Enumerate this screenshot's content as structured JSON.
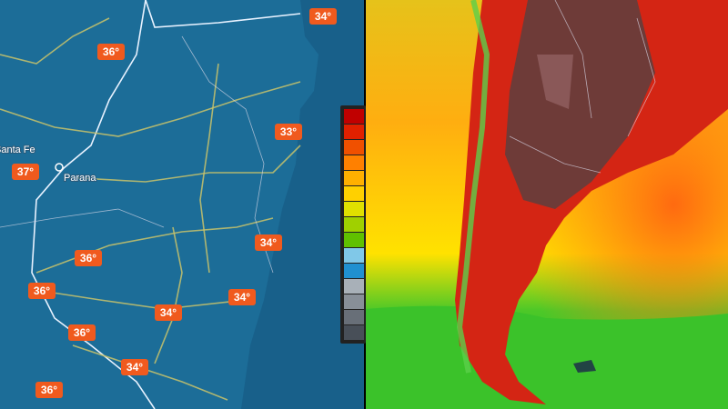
{
  "left_map": {
    "temperature_labels": [
      "34°",
      "36°",
      "33°",
      "37°",
      "34°",
      "36°",
      "36°",
      "34°",
      "34°",
      "36°",
      "34°",
      "36°"
    ],
    "cities": [
      "Santa Fe",
      "Parana"
    ]
  }
}
